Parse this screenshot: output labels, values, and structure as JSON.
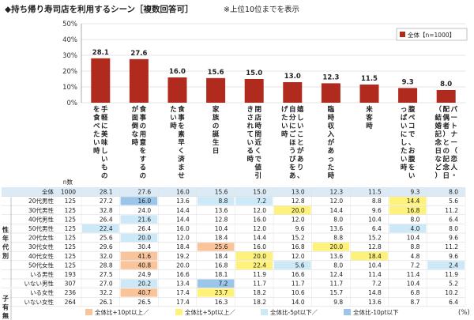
{
  "title": "◆持ち帰り寿司店を利用するシーン［複数回答可］",
  "note": "※上位10位までを表示",
  "nlabel": "n数",
  "percent_unit": "(%)",
  "legend_top": "全体【n=1000】",
  "colors": {
    "bar": "#b02a1e",
    "orange": "#f9c49a",
    "yellow": "#fff27a",
    "lightblue": "#cde9f7",
    "blue": "#9bc6ea",
    "header_bg": "#dceaf5",
    "grid": "#cccccc"
  },
  "legend_bottom": [
    "全体比+10pt以上",
    "全体比+5pt以上",
    "全体比-5pt以下",
    "全体比-10pt以下"
  ],
  "groups": [
    {
      "label": "性年代別",
      "start": 1,
      "end": 10
    },
    {
      "label": "子有無",
      "start": 11,
      "end": 14
    }
  ],
  "chart_data": {
    "type": "bar",
    "title": "◆持ち帰り寿司店を利用するシーン［複数回答可］",
    "ylim": [
      0,
      50
    ],
    "yticks": [
      "0%",
      "10%",
      "20%",
      "30%",
      "40%",
      "50%"
    ],
    "legend_position": "top-right",
    "categories": [
      "手軽に美味しいものを食べたい時",
      "食事の用意をするのが面倒な時",
      "食事を素早く済ませたい時",
      "家族の誕生日",
      "閉店時間近くで値引きされている時",
      "嬉しいことがあり、自分にごほうびをあげたい時",
      "臨時収入があった時",
      "来客時",
      "腹ペコで、お腹をいっぱいにしたい時",
      "パートナー（恋人・配偶者）との記念日（結婚記念日など）"
    ],
    "series": [
      {
        "name": "全体【n=1000】",
        "values": [
          28.1,
          27.6,
          16.0,
          15.6,
          15.0,
          13.0,
          12.3,
          11.5,
          9.3,
          8.0
        ]
      }
    ],
    "table": {
      "rows": [
        {
          "label": "全体",
          "n": "1000",
          "values": [
            "28.1",
            "27.6",
            "16.0",
            "15.6",
            "15.0",
            "13.0",
            "12.3",
            "11.5",
            "9.3",
            "8.0"
          ],
          "hl": [
            "",
            "",
            "",
            "",
            "",
            "",
            "",
            "",
            "",
            ""
          ]
        },
        {
          "label": "20代男性",
          "n": "125",
          "values": [
            "27.2",
            "16.0",
            "13.6",
            "8.8",
            "7.2",
            "12.8",
            "12.0",
            "8.8",
            "14.4",
            "5.6"
          ],
          "hl": [
            "",
            "b",
            "",
            "lb",
            "lb",
            "",
            "",
            "",
            "y",
            ""
          ]
        },
        {
          "label": "30代男性",
          "n": "125",
          "values": [
            "32.8",
            "24.0",
            "14.4",
            "13.6",
            "12.0",
            "20.0",
            "14.4",
            "9.6",
            "16.8",
            "11.2"
          ],
          "hl": [
            "",
            "",
            "",
            "",
            "",
            "y",
            "",
            "",
            "y",
            ""
          ]
        },
        {
          "label": "40代男性",
          "n": "125",
          "values": [
            "26.4",
            "21.6",
            "14.4",
            "12.8",
            "16.0",
            "12.0",
            "8.0",
            "10.4",
            "8.0",
            "6.4"
          ],
          "hl": [
            "",
            "lb",
            "",
            "",
            "",
            "",
            "",
            "",
            "",
            ""
          ]
        },
        {
          "label": "50代男性",
          "n": "125",
          "values": [
            "22.4",
            "26.4",
            "16.0",
            "10.4",
            "12.0",
            "9.6",
            "13.6",
            "6.4",
            "4.0",
            "8.0"
          ],
          "hl": [
            "lb",
            "",
            "",
            "",
            "",
            "",
            "",
            "",
            "lb",
            ""
          ]
        },
        {
          "label": "20代女性",
          "n": "125",
          "values": [
            "25.6",
            "20.0",
            "12.0",
            "18.4",
            "14.4",
            "15.2",
            "8.8",
            "15.2",
            "10.4",
            "9.6"
          ],
          "hl": [
            "",
            "lb",
            "",
            "",
            "",
            "",
            "",
            "",
            "",
            ""
          ]
        },
        {
          "label": "30代女性",
          "n": "125",
          "values": [
            "29.6",
            "30.4",
            "18.4",
            "25.6",
            "16.0",
            "16.8",
            "20.0",
            "12.8",
            "8.8",
            "11.2"
          ],
          "hl": [
            "",
            "",
            "",
            "o",
            "",
            "",
            "y",
            "",
            "",
            ""
          ]
        },
        {
          "label": "40代女性",
          "n": "125",
          "values": [
            "32.0",
            "41.6",
            "19.2",
            "18.4",
            "20.0",
            "12.0",
            "13.6",
            "18.4",
            "4.8",
            "9.6"
          ],
          "hl": [
            "",
            "o",
            "",
            "",
            "y",
            "",
            "",
            "y",
            "",
            ""
          ]
        },
        {
          "label": "50代女性",
          "n": "125",
          "values": [
            "28.8",
            "40.8",
            "20.0",
            "16.8",
            "22.4",
            "5.6",
            "8.0",
            "10.4",
            "7.2",
            "2.4"
          ],
          "hl": [
            "",
            "o",
            "",
            "",
            "y",
            "lb",
            "",
            "",
            "",
            "lb"
          ]
        },
        {
          "label": "いる男性",
          "n": "193",
          "values": [
            "27.5",
            "24.9",
            "16.6",
            "18.1",
            "11.9",
            "16.6",
            "12.4",
            "11.4",
            "11.4",
            "11.9"
          ],
          "hl": [
            "",
            "",
            "",
            "",
            "",
            "",
            "",
            "",
            "",
            ""
          ]
        },
        {
          "label": "いない男性",
          "n": "307",
          "values": [
            "27.0",
            "20.2",
            "13.4",
            "7.2",
            "11.7",
            "11.7",
            "11.7",
            "7.2",
            "10.4",
            "5.2"
          ],
          "hl": [
            "",
            "lb",
            "",
            "b",
            "",
            "",
            "",
            "",
            "",
            ""
          ]
        },
        {
          "label": "いる女性",
          "n": "236",
          "values": [
            "32.2",
            "40.7",
            "17.4",
            "23.7",
            "18.2",
            "10.6",
            "15.7",
            "14.8",
            "6.8",
            "10.2"
          ],
          "hl": [
            "",
            "o",
            "",
            "y",
            "",
            "",
            "",
            "",
            "",
            ""
          ]
        },
        {
          "label": "いない女性",
          "n": "264",
          "values": [
            "26.1",
            "26.5",
            "17.4",
            "16.3",
            "18.2",
            "14.0",
            "9.8",
            "13.6",
            "8.7",
            "6.4"
          ],
          "hl": [
            "",
            "",
            "",
            "",
            "",
            "",
            "",
            "",
            "",
            ""
          ]
        }
      ]
    }
  }
}
